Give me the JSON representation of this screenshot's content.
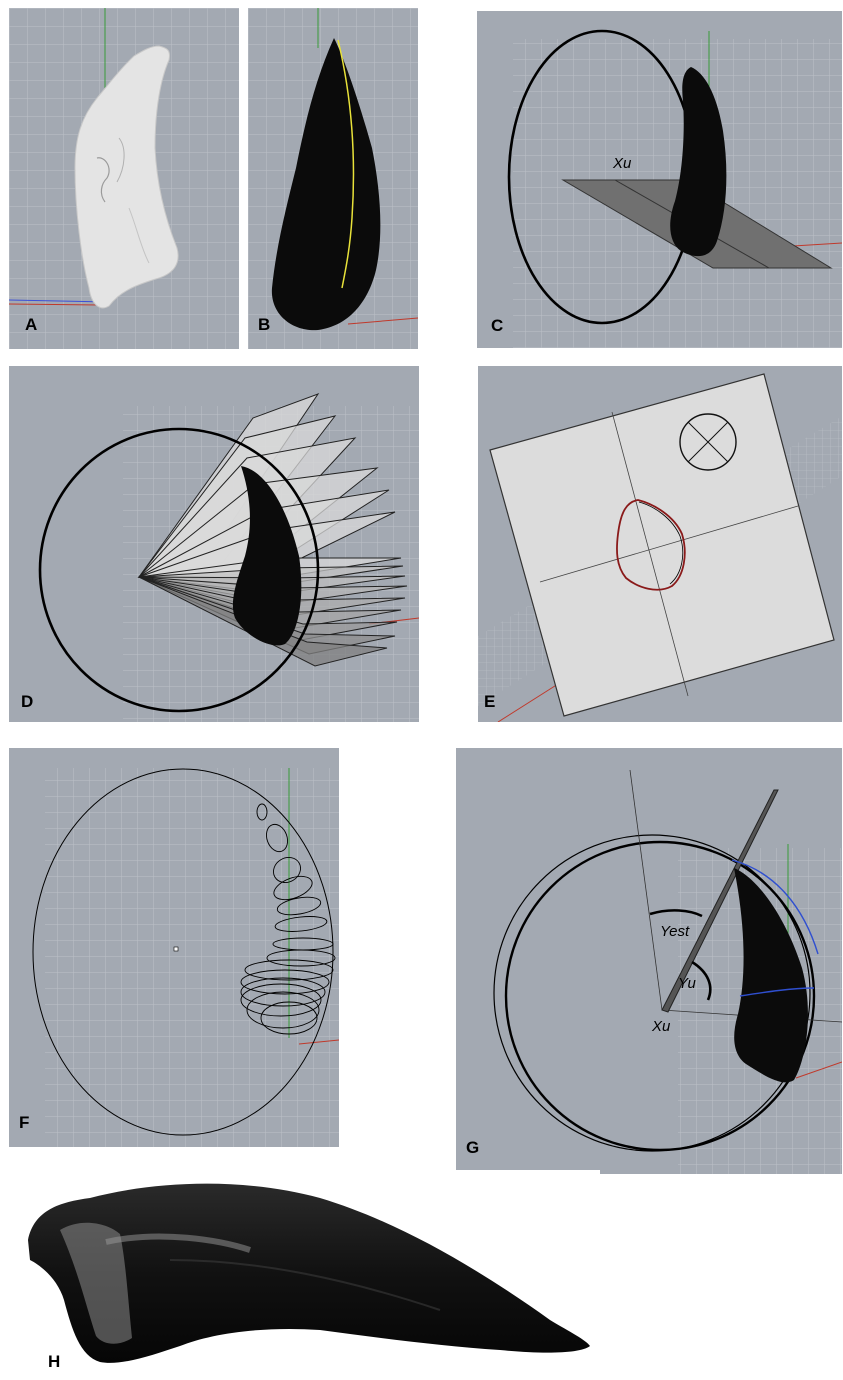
{
  "figure": {
    "panels": [
      {
        "id": "A",
        "label": "A"
      },
      {
        "id": "B",
        "label": "B"
      },
      {
        "id": "C",
        "label": "C",
        "annotations": {
          "xu": "Xu"
        }
      },
      {
        "id": "D",
        "label": "D"
      },
      {
        "id": "E",
        "label": "E"
      },
      {
        "id": "F",
        "label": "F"
      },
      {
        "id": "G",
        "label": "G",
        "annotations": {
          "yest": "Yest",
          "yu": "Yu",
          "xu": "Xu"
        }
      },
      {
        "id": "H",
        "label": "H"
      }
    ],
    "colors": {
      "viewport_bg": "#a3a9b2",
      "grid_line": "#bcc1c8",
      "claw_black": "#0b0b0b",
      "claw_white": "#e4e4e4",
      "axis_green": "#3a9a3a",
      "axis_red": "#c0392b",
      "curve_yellow": "#e8e23a",
      "arc_blue": "#2f4fd0",
      "plane_grey": "#707070"
    }
  }
}
